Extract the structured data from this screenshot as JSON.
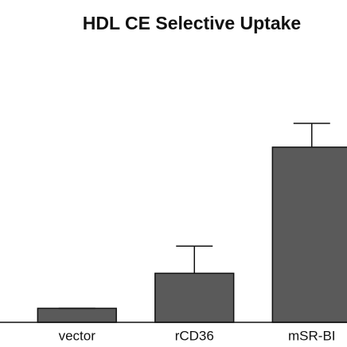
{
  "chart_data": {
    "type": "bar",
    "title": "HDL CE Selective Uptake",
    "categories": [
      "vector",
      "rCD36",
      "mSR-BI"
    ],
    "values": [
      8,
      28,
      100
    ],
    "errors": [
      0,
      15.5,
      13.6
    ],
    "color": "#5a5a5a"
  }
}
